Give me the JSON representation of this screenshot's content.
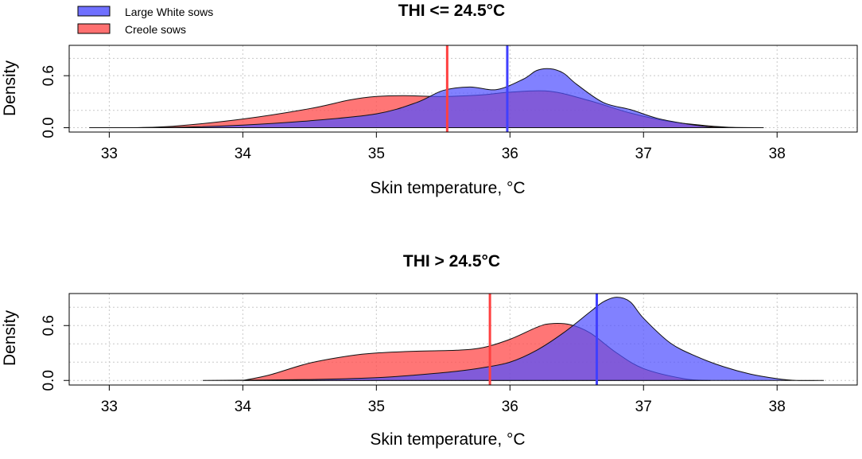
{
  "legend": {
    "position": "top-left",
    "items": [
      {
        "label": "Large White sows",
        "color": "#5050ff"
      },
      {
        "label": "Creole sows",
        "color": "#ff5050"
      }
    ]
  },
  "colors": {
    "large_white_fill": "rgba(80,80,255,0.72)",
    "large_white_line": "#4040ff",
    "creole_fill": "rgba(255,80,80,0.78)",
    "creole_line": "#ff4040",
    "overlap_hint": "#7a3cb8"
  },
  "chart_data": [
    {
      "type": "area",
      "title": "THI <= 24.5°C",
      "xlabel": "Skin temperature, °C",
      "ylabel": "Density",
      "xlim": [
        32.7,
        38.6
      ],
      "ylim": [
        -0.05,
        0.95
      ],
      "xticks": [
        33,
        34,
        35,
        36,
        37,
        38
      ],
      "yticks": [
        0.0,
        0.6
      ],
      "yticks_minor": [
        0.2,
        0.4,
        0.8
      ],
      "grid": true,
      "series": [
        {
          "name": "Large White sows",
          "x": [
            32.85,
            33.5,
            34.0,
            34.5,
            35.0,
            35.3,
            35.5,
            35.7,
            35.9,
            36.1,
            36.2,
            36.3,
            36.4,
            36.5,
            36.7,
            36.9,
            37.1,
            37.3,
            37.5,
            37.7,
            37.9
          ],
          "y": [
            0.0,
            0.005,
            0.03,
            0.08,
            0.16,
            0.29,
            0.43,
            0.47,
            0.44,
            0.56,
            0.66,
            0.68,
            0.63,
            0.5,
            0.29,
            0.21,
            0.11,
            0.05,
            0.01,
            0.003,
            0.0
          ],
          "mean": 35.98
        },
        {
          "name": "Creole sows",
          "x": [
            33.2,
            33.5,
            34.0,
            34.5,
            34.8,
            35.0,
            35.2,
            35.5,
            35.8,
            36.0,
            36.3,
            36.6,
            36.9,
            37.2,
            37.5,
            37.7
          ],
          "y": [
            0.0,
            0.02,
            0.1,
            0.22,
            0.32,
            0.36,
            0.37,
            0.36,
            0.38,
            0.41,
            0.42,
            0.31,
            0.17,
            0.07,
            0.02,
            0.0
          ],
          "mean": 35.53
        }
      ]
    },
    {
      "type": "area",
      "title": "THI > 24.5°C",
      "xlabel": "Skin temperature, °C",
      "ylabel": "Density",
      "xlim": [
        32.7,
        38.6
      ],
      "ylim": [
        -0.05,
        0.95
      ],
      "xticks": [
        33,
        34,
        35,
        36,
        37,
        38
      ],
      "yticks": [
        0.0,
        0.6
      ],
      "yticks_minor": [
        0.2,
        0.4,
        0.8
      ],
      "grid": true,
      "series": [
        {
          "name": "Large White sows",
          "x": [
            33.7,
            34.5,
            35.0,
            35.3,
            35.6,
            35.8,
            36.0,
            36.2,
            36.4,
            36.6,
            36.7,
            36.8,
            36.9,
            37.0,
            37.2,
            37.4,
            37.6,
            37.8,
            38.0,
            38.15,
            38.35
          ],
          "y": [
            0.0,
            0.01,
            0.03,
            0.06,
            0.1,
            0.14,
            0.2,
            0.33,
            0.52,
            0.75,
            0.86,
            0.91,
            0.86,
            0.68,
            0.41,
            0.26,
            0.15,
            0.07,
            0.02,
            0.0,
            0.0
          ],
          "mean": 36.65
        },
        {
          "name": "Creole sows",
          "x": [
            34.0,
            34.2,
            34.5,
            34.8,
            35.0,
            35.3,
            35.6,
            35.8,
            36.0,
            36.2,
            36.3,
            36.45,
            36.6,
            36.8,
            37.0,
            37.3,
            37.5
          ],
          "y": [
            0.0,
            0.06,
            0.19,
            0.27,
            0.3,
            0.32,
            0.33,
            0.36,
            0.45,
            0.58,
            0.62,
            0.61,
            0.52,
            0.3,
            0.13,
            0.02,
            0.0
          ],
          "mean": 35.85
        }
      ]
    }
  ]
}
